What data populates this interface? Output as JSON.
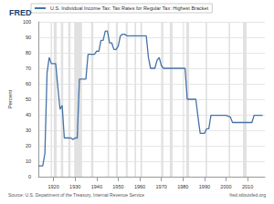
{
  "chart_data": {
    "type": "line",
    "annotations": {
      "logo": "FRED",
      "source": "Source: U.S. Department of the Treasury, Internal Revenue Service",
      "site": "fred.stlouisfed.org"
    },
    "y_label": "Percent",
    "x": [
      1913,
      1914,
      1915,
      1916,
      1917,
      1918,
      1919,
      1920,
      1921,
      1922,
      1923,
      1924,
      1925,
      1926,
      1927,
      1928,
      1929,
      1930,
      1931,
      1932,
      1933,
      1934,
      1935,
      1936,
      1937,
      1938,
      1939,
      1940,
      1941,
      1942,
      1943,
      1944,
      1945,
      1946,
      1947,
      1948,
      1949,
      1950,
      1951,
      1952,
      1953,
      1954,
      1955,
      1956,
      1957,
      1958,
      1959,
      1960,
      1961,
      1962,
      1963,
      1964,
      1965,
      1966,
      1967,
      1968,
      1969,
      1970,
      1971,
      1972,
      1973,
      1974,
      1975,
      1976,
      1977,
      1978,
      1979,
      1980,
      1981,
      1982,
      1983,
      1984,
      1985,
      1986,
      1987,
      1988,
      1989,
      1990,
      1991,
      1992,
      1993,
      1994,
      1995,
      1996,
      1997,
      1998,
      1999,
      2000,
      2001,
      2002,
      2003,
      2004,
      2005,
      2006,
      2007,
      2008,
      2009,
      2010,
      2011,
      2012,
      2013,
      2014,
      2015,
      2016,
      2017
    ],
    "series": [
      {
        "name": "U.S. Individual Income Tax: Tax Rates for Regular Tax: Highest Bracket",
        "color": "#4572a7",
        "values": [
          7,
          7,
          7,
          15,
          67,
          77,
          73,
          73,
          73,
          58,
          43.5,
          46,
          25,
          25,
          25,
          25,
          24,
          25,
          25,
          63,
          63,
          63,
          63,
          79,
          79,
          79,
          79,
          81.1,
          81,
          88,
          88,
          94,
          94,
          86.45,
          86.45,
          82.13,
          82.13,
          84.36,
          91,
          92,
          92,
          91,
          91,
          91,
          91,
          91,
          91,
          91,
          91,
          91,
          91,
          77,
          70,
          70,
          70,
          75.25,
          77,
          71.75,
          70,
          70,
          70,
          70,
          70,
          70,
          70,
          70,
          70,
          70,
          70,
          50,
          50,
          50,
          50,
          50,
          38.5,
          28,
          28,
          28,
          31,
          31,
          39.6,
          39.6,
          39.6,
          39.6,
          39.6,
          39.6,
          39.6,
          39.6,
          39.1,
          38.6,
          35,
          35,
          35,
          35,
          35,
          35,
          35,
          35,
          35,
          35,
          39.6,
          39.6,
          39.6,
          39.6,
          39.6
        ]
      }
    ],
    "recessions": [
      [
        1918.67,
        1919.25
      ],
      [
        1920.08,
        1921.5
      ],
      [
        1923.4,
        1924.5
      ],
      [
        1926.8,
        1927.9
      ],
      [
        1929.6,
        1933.2
      ],
      [
        1937.4,
        1938.5
      ],
      [
        1945.1,
        1945.8
      ],
      [
        1948.9,
        1949.8
      ],
      [
        1953.5,
        1954.4
      ],
      [
        1957.6,
        1958.3
      ],
      [
        1960.3,
        1961.1
      ],
      [
        1969.9,
        1970.9
      ],
      [
        1973.9,
        1975.2
      ],
      [
        1980.0,
        1980.5
      ],
      [
        1981.5,
        1982.9
      ],
      [
        1990.5,
        1991.2
      ],
      [
        2001.2,
        2001.9
      ],
      [
        2007.9,
        2009.5
      ]
    ],
    "xlim": [
      1913,
      2018
    ],
    "xticks": [
      1920,
      1930,
      1940,
      1950,
      1960,
      1970,
      1980,
      1990,
      2000,
      2010
    ],
    "ylim": [
      0,
      100
    ],
    "yticks": [
      0,
      10,
      20,
      30,
      40,
      50,
      60,
      70,
      80,
      90,
      100
    ],
    "grid": true,
    "legend": "top"
  }
}
